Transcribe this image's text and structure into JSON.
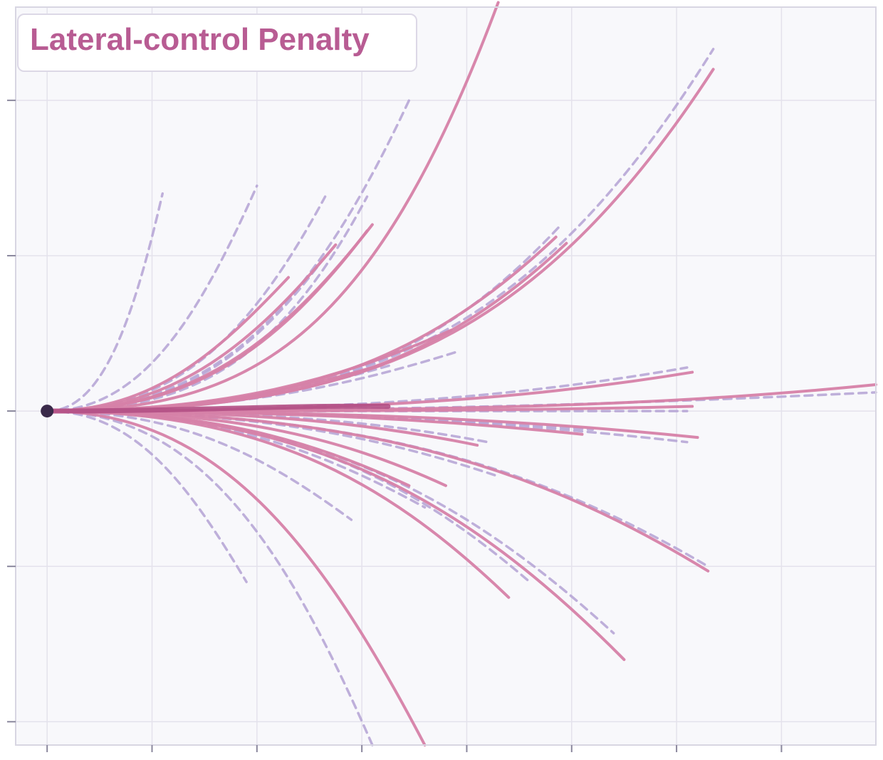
{
  "chart_data": {
    "type": "line",
    "title": "Lateral-control Penalty",
    "xlabel": "",
    "ylabel": "",
    "xlim": [
      -0.3,
      7.9
    ],
    "ylim": [
      -2.15,
      2.6
    ],
    "x_ticks": [
      0,
      1,
      2,
      3,
      4,
      5,
      6,
      7
    ],
    "y_ticks": [
      -2,
      -1,
      0,
      1,
      2
    ],
    "tick_labels_shown": false,
    "grid": true,
    "legend": "none",
    "origin": [
      0,
      0
    ],
    "series": [
      {
        "style": "ghost",
        "end": [
          6.35,
          2.33
        ],
        "mid_y": 0.4
      },
      {
        "style": "ghost",
        "end": [
          4.9,
          1.2
        ],
        "mid_y": 0.2
      },
      {
        "style": "ghost",
        "end": [
          3.05,
          1.38
        ],
        "mid_y": 0.3
      },
      {
        "style": "ghost",
        "end": [
          2.65,
          1.38
        ],
        "mid_y": 0.45
      },
      {
        "style": "ghost",
        "end": [
          2.0,
          1.45
        ],
        "mid_y": 0.6
      },
      {
        "style": "ghost",
        "end": [
          1.1,
          1.4
        ],
        "mid_y": 0.5
      },
      {
        "style": "ghost",
        "end": [
          3.45,
          2.0
        ],
        "mid_y": 0.6
      },
      {
        "style": "ghost",
        "end": [
          2.6,
          0.95
        ],
        "mid_y": 0.3
      },
      {
        "style": "ghost",
        "end": [
          3.9,
          0.38
        ],
        "mid_y": 0.15
      },
      {
        "style": "ghost",
        "end": [
          3.3,
          0.3
        ],
        "mid_y": 0.12
      },
      {
        "style": "ghost",
        "end": [
          6.1,
          0.28
        ],
        "mid_y": 0.08
      },
      {
        "style": "ghost",
        "end": [
          7.9,
          0.12
        ],
        "mid_y": 0.05
      },
      {
        "style": "ghost",
        "end": [
          6.1,
          0.0
        ],
        "mid_y": 0.0
      },
      {
        "style": "ghost",
        "end": [
          5.2,
          -0.12
        ],
        "mid_y": -0.05
      },
      {
        "style": "ghost",
        "end": [
          4.2,
          -0.2
        ],
        "mid_y": -0.05
      },
      {
        "style": "ghost",
        "end": [
          6.1,
          -0.2
        ],
        "mid_y": -0.07
      },
      {
        "style": "ghost",
        "end": [
          4.3,
          -0.42
        ],
        "mid_y": -0.15
      },
      {
        "style": "ghost",
        "end": [
          3.6,
          -0.62
        ],
        "mid_y": -0.25
      },
      {
        "style": "ghost",
        "end": [
          6.3,
          -1.0
        ],
        "mid_y": -0.3
      },
      {
        "style": "ghost",
        "end": [
          4.6,
          -1.1
        ],
        "mid_y": -0.35
      },
      {
        "style": "ghost",
        "end": [
          5.4,
          -1.43
        ],
        "mid_y": -0.5
      },
      {
        "style": "ghost",
        "end": [
          3.1,
          -2.15
        ],
        "mid_y": -0.8
      },
      {
        "style": "ghost",
        "end": [
          1.9,
          -1.1
        ],
        "mid_y": -0.5
      },
      {
        "style": "ghost",
        "end": [
          2.9,
          -0.7
        ],
        "mid_y": -0.3
      },
      {
        "style": "trajectory",
        "end": [
          4.3,
          2.63
        ],
        "mid_y": 0.45
      },
      {
        "style": "trajectory",
        "end": [
          6.35,
          2.2
        ],
        "mid_y": 0.35
      },
      {
        "style": "trajectory",
        "end": [
          4.95,
          1.08
        ],
        "mid_y": 0.2
      },
      {
        "style": "trajectory",
        "end": [
          4.85,
          1.12
        ],
        "mid_y": 0.25
      },
      {
        "style": "trajectory",
        "end": [
          3.05,
          1.16
        ],
        "mid_y": 0.4
      },
      {
        "style": "trajectory",
        "end": [
          3.1,
          1.2
        ],
        "mid_y": 0.45
      },
      {
        "style": "trajectory",
        "end": [
          2.75,
          1.07
        ],
        "mid_y": 0.45
      },
      {
        "style": "trajectory",
        "end": [
          2.3,
          0.86
        ],
        "mid_y": 0.4
      },
      {
        "style": "trajectory",
        "end": [
          3.85,
          0.52
        ],
        "mid_y": 0.2
      },
      {
        "style": "trajectory",
        "end": [
          3.2,
          0.3
        ],
        "mid_y": 0.12
      },
      {
        "style": "trajectory",
        "end": [
          6.15,
          0.25
        ],
        "mid_y": 0.06
      },
      {
        "style": "trajectory",
        "end": [
          7.9,
          0.17
        ],
        "mid_y": 0.02
      },
      {
        "style": "trajectory",
        "end": [
          6.15,
          0.03
        ],
        "mid_y": 0.0
      },
      {
        "style": "trajectory",
        "end": [
          5.1,
          -0.15
        ],
        "mid_y": -0.05
      },
      {
        "style": "trajectory",
        "end": [
          4.1,
          -0.22
        ],
        "mid_y": -0.06
      },
      {
        "style": "trajectory",
        "end": [
          6.2,
          -0.17
        ],
        "mid_y": -0.05
      },
      {
        "style": "trajectory",
        "end": [
          3.8,
          -0.48
        ],
        "mid_y": -0.15
      },
      {
        "style": "trajectory",
        "end": [
          3.45,
          -0.48
        ],
        "mid_y": -0.18
      },
      {
        "style": "trajectory",
        "end": [
          6.3,
          -1.03
        ],
        "mid_y": -0.3
      },
      {
        "style": "trajectory",
        "end": [
          4.4,
          -1.2
        ],
        "mid_y": -0.4
      },
      {
        "style": "trajectory",
        "end": [
          5.5,
          -1.6
        ],
        "mid_y": -0.55
      },
      {
        "style": "trajectory",
        "end": [
          3.6,
          -2.15
        ],
        "mid_y": -0.85
      },
      {
        "style": "highlighted",
        "end": [
          3.25,
          0.03
        ],
        "mid_y": 0.04
      }
    ]
  },
  "colors": {
    "title": "#b85c93",
    "trajectory": "#d681a8",
    "ghost": "#b7a6d6",
    "highlighted": "#b24f84",
    "origin_point": "#3a2a4a",
    "plot_background": "#f8f8fb",
    "grid": "#e4e2ec",
    "axis": "#d8d6e2",
    "tick": "#8a879d"
  }
}
